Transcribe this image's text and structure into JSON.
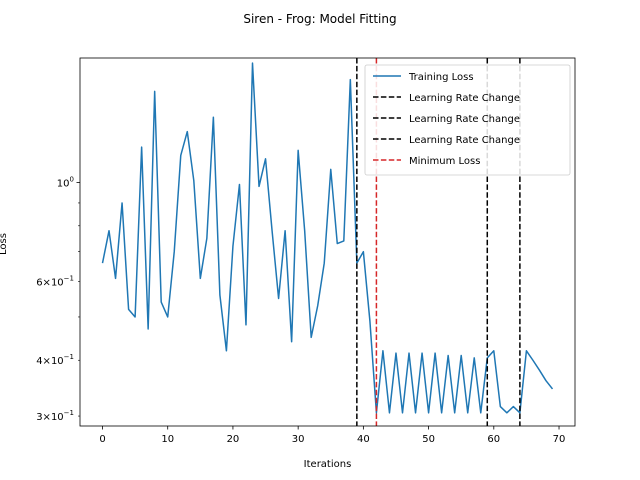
{
  "chart_data": {
    "type": "line",
    "title": "Siren - Frog: Model Fitting",
    "xlabel": "Iterations",
    "ylabel": "Loss",
    "xlim": [
      -3.45,
      72.45
    ],
    "ylim": [
      0.285,
      1.9
    ],
    "yscale": "log",
    "xticks": [
      0,
      10,
      20,
      30,
      40,
      50,
      60,
      70
    ],
    "xtick_labels": [
      "0",
      "10",
      "20",
      "30",
      "40",
      "50",
      "60",
      "70"
    ],
    "yticks_major": [
      {
        "value": 1.0,
        "base": "10",
        "exp": "0"
      }
    ],
    "yticks_labeled_minor": [
      {
        "value": 0.3,
        "mant": "3",
        "base": "10",
        "exp": "−1"
      },
      {
        "value": 0.4,
        "mant": "4",
        "base": "10",
        "exp": "−1"
      },
      {
        "value": 0.6,
        "mant": "6",
        "base": "10",
        "exp": "−1"
      }
    ],
    "yticks_minor_unlabeled": [
      0.5,
      0.7,
      0.8,
      0.9
    ],
    "grid": false,
    "legend_position": "top-right",
    "series": [
      {
        "name": "Training Loss",
        "color": "#1f77b4",
        "x": [
          0,
          1,
          2,
          3,
          4,
          5,
          6,
          7,
          8,
          9,
          10,
          11,
          12,
          13,
          14,
          15,
          16,
          17,
          18,
          19,
          20,
          21,
          22,
          23,
          24,
          25,
          26,
          27,
          28,
          29,
          30,
          31,
          32,
          33,
          34,
          35,
          36,
          37,
          38,
          39,
          40,
          41,
          42,
          43,
          44,
          45,
          46,
          47,
          48,
          49,
          50,
          51,
          52,
          53,
          54,
          55,
          56,
          57,
          58,
          59,
          60,
          61,
          62,
          63,
          64,
          65,
          66,
          67,
          68,
          69
        ],
        "y": [
          0.66,
          0.78,
          0.61,
          0.9,
          0.52,
          0.5,
          1.2,
          0.47,
          1.6,
          0.54,
          0.5,
          0.7,
          1.15,
          1.3,
          1.01,
          0.61,
          0.75,
          1.4,
          0.56,
          0.42,
          0.72,
          0.99,
          0.48,
          1.85,
          0.98,
          1.13,
          0.78,
          0.55,
          0.78,
          0.44,
          1.18,
          0.78,
          0.45,
          0.53,
          0.66,
          1.07,
          0.73,
          0.74,
          1.7,
          0.66,
          0.7,
          0.49,
          0.305,
          0.42,
          0.305,
          0.415,
          0.305,
          0.415,
          0.305,
          0.415,
          0.305,
          0.415,
          0.305,
          0.41,
          0.305,
          0.41,
          0.305,
          0.405,
          0.305,
          0.405,
          0.42,
          0.315,
          0.305,
          0.315,
          0.305,
          0.42,
          0.4,
          0.38,
          0.36,
          0.345
        ]
      }
    ],
    "vlines": [
      {
        "name": "Learning Rate Change",
        "x": 39,
        "color": "#000000"
      },
      {
        "name": "Learning Rate Change",
        "x": 59,
        "color": "#000000"
      },
      {
        "name": "Learning Rate Change",
        "x": 64,
        "color": "#000000"
      },
      {
        "name": "Minimum Loss",
        "x": 42,
        "color": "#d62728"
      }
    ],
    "legend": [
      {
        "label": "Training Loss",
        "style": "solid",
        "color": "#1f77b4"
      },
      {
        "label": "Learning Rate Change",
        "style": "dashed",
        "color": "#000000"
      },
      {
        "label": "Learning Rate Change",
        "style": "dashed",
        "color": "#000000"
      },
      {
        "label": "Learning Rate Change",
        "style": "dashed",
        "color": "#000000"
      },
      {
        "label": "Minimum Loss",
        "style": "dashed",
        "color": "#d62728"
      }
    ]
  }
}
